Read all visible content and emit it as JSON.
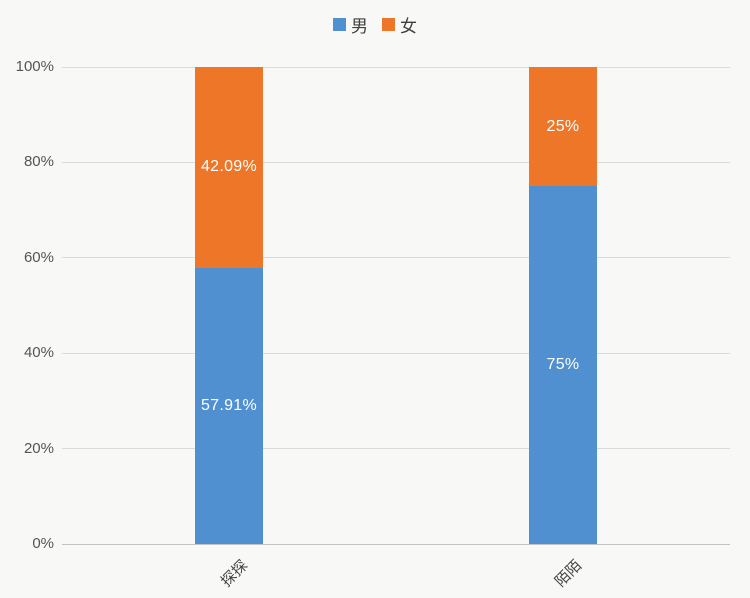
{
  "chart_data": {
    "type": "bar",
    "subtype": "stacked-100-column",
    "title": "",
    "xlabel": "",
    "ylabel": "",
    "categories": [
      "探探",
      "陌陌"
    ],
    "series": [
      {
        "name": "男",
        "color": "#5090D1",
        "values": [
          57.91,
          75
        ],
        "labels": [
          "57.91%",
          "75%"
        ]
      },
      {
        "name": "女",
        "color": "#ED7628",
        "values": [
          42.09,
          25
        ],
        "labels": [
          "42.09%",
          "25%"
        ]
      }
    ],
    "ylim": [
      0,
      100
    ],
    "y_ticks": [
      {
        "value": 0,
        "label": "0%"
      },
      {
        "value": 20,
        "label": "20%"
      },
      {
        "value": 40,
        "label": "40%"
      },
      {
        "value": 60,
        "label": "60%"
      },
      {
        "value": 80,
        "label": "80%"
      },
      {
        "value": 100,
        "label": "100%"
      }
    ],
    "grid": true,
    "legend_position": "top",
    "data_label_color": "#FFFFFF"
  },
  "colors": {
    "background": "#F8F8F6",
    "gridline": "#DBDBDB",
    "axis_line": "#C3C3C3",
    "tick_text": "#555555",
    "legend_text": "#3F3F3F"
  }
}
